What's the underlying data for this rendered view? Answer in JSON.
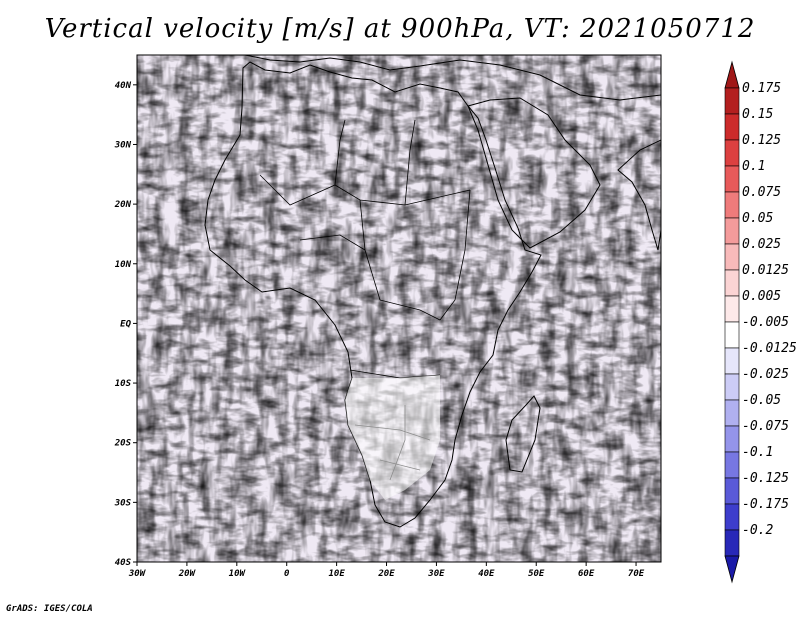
{
  "title": "Vertical velocity [m/s] at 900hPa, VT: 2021050712",
  "footer": "GrADS: IGES/COLA",
  "map": {
    "lon_range": [
      -30,
      75
    ],
    "lat_range": [
      -40,
      45
    ],
    "lat_ticks": [
      {
        "value": 40,
        "label": "40N"
      },
      {
        "value": 30,
        "label": "30N"
      },
      {
        "value": 20,
        "label": "20N"
      },
      {
        "value": 10,
        "label": "10N"
      },
      {
        "value": 0,
        "label": "EQ"
      },
      {
        "value": -10,
        "label": "10S"
      },
      {
        "value": -20,
        "label": "20S"
      },
      {
        "value": -30,
        "label": "30S"
      },
      {
        "value": -40,
        "label": "40S"
      }
    ],
    "lon_ticks": [
      {
        "value": -30,
        "label": "30W"
      },
      {
        "value": -20,
        "label": "20W"
      },
      {
        "value": -10,
        "label": "10W"
      },
      {
        "value": 0,
        "label": "0"
      },
      {
        "value": 10,
        "label": "10E"
      },
      {
        "value": 20,
        "label": "20E"
      },
      {
        "value": 30,
        "label": "30E"
      },
      {
        "value": 40,
        "label": "40E"
      },
      {
        "value": 50,
        "label": "50E"
      },
      {
        "value": 60,
        "label": "60E"
      },
      {
        "value": 70,
        "label": "70E"
      }
    ]
  },
  "colorbar": {
    "levels": [
      {
        "label": "0.175",
        "color": "#b31f1f"
      },
      {
        "label": "0.15",
        "color": "#cc2b2b"
      },
      {
        "label": "0.125",
        "color": "#dc4040"
      },
      {
        "label": "0.1",
        "color": "#e85a5a"
      },
      {
        "label": "0.075",
        "color": "#ef7b7b"
      },
      {
        "label": "0.05",
        "color": "#f49b9b"
      },
      {
        "label": "0.025",
        "color": "#f8baba"
      },
      {
        "label": "0.0125",
        "color": "#fbd4d4"
      },
      {
        "label": "0.005",
        "color": "#fde9e9"
      },
      {
        "label": "-0.005",
        "color": "#ffffff"
      },
      {
        "label": "-0.0125",
        "color": "#e6e6fb"
      },
      {
        "label": "-0.025",
        "color": "#ccccf6"
      },
      {
        "label": "-0.05",
        "color": "#b0b0f0"
      },
      {
        "label": "-0.075",
        "color": "#9494ea"
      },
      {
        "label": "-0.1",
        "color": "#7777e2"
      },
      {
        "label": "-0.125",
        "color": "#5a5ad8"
      },
      {
        "label": "-0.175",
        "color": "#3d3dcc"
      },
      {
        "label": "-0.2",
        "color": "#2828b8"
      }
    ],
    "top_color": "#a01818",
    "bottom_color": "#1a1aa8"
  }
}
